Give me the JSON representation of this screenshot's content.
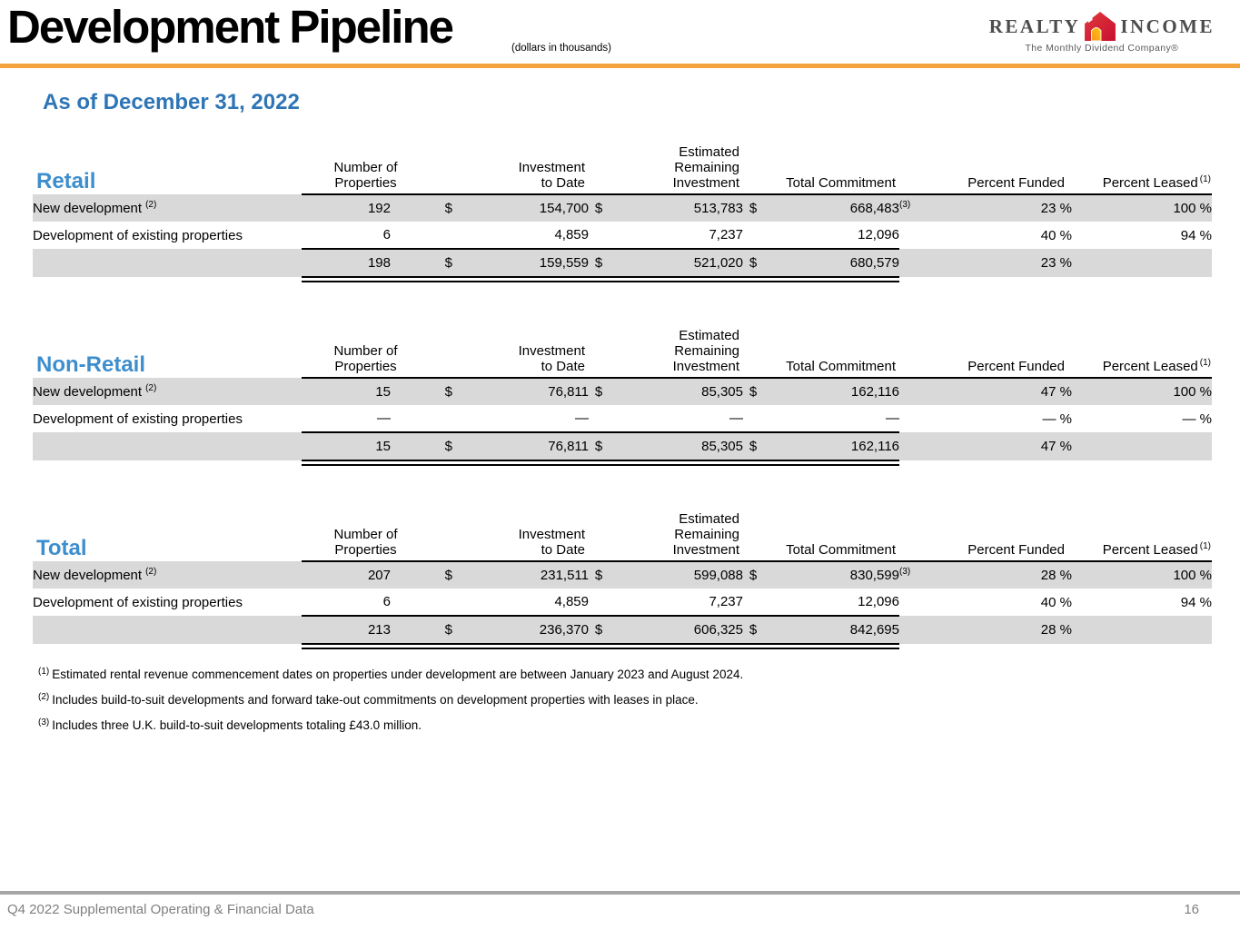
{
  "header": {
    "title": "Development Pipeline",
    "subtitle": "(dollars in thousands)",
    "logo": {
      "word_left": "REALTY",
      "word_right": "INCOME",
      "tagline": "The Monthly Dividend Company®"
    },
    "accent_color": "#F5A33C"
  },
  "as_of": "As of December 31, 2022",
  "columns": {
    "properties": "Number of\nProperties",
    "investment": "Investment\nto Date",
    "remaining": "Estimated\nRemaining\nInvestment",
    "commitment": "Total Commitment",
    "funded": "Percent Funded",
    "leased": "Percent Leased",
    "leased_note": "(1)"
  },
  "sections": [
    {
      "key": "retail",
      "title": "Retail",
      "rows": [
        {
          "label": "New development",
          "label_note": "(2)",
          "shaded": true,
          "props": "192",
          "d1": "$",
          "inv": "154,700",
          "d2": "$",
          "rem": "513,783",
          "d3": "$",
          "commit": "668,483",
          "commit_note": "(3)",
          "funded": "23 %",
          "leased": "100 %"
        },
        {
          "label": "Development of existing properties",
          "shaded": false,
          "props": "6",
          "inv": "4,859",
          "rem": "7,237",
          "commit": "12,096",
          "funded": "40 %",
          "leased": "94 %"
        },
        {
          "label": "",
          "total": true,
          "shaded": true,
          "props": "198",
          "d1": "$",
          "inv": "159,559",
          "d2": "$",
          "rem": "521,020",
          "d3": "$",
          "commit": "680,579",
          "funded": "23 %",
          "leased": ""
        }
      ]
    },
    {
      "key": "non-retail",
      "title": "Non-Retail",
      "rows": [
        {
          "label": "New development",
          "label_note": "(2)",
          "shaded": true,
          "props": "15",
          "d1": "$",
          "inv": "76,811",
          "d2": "$",
          "rem": "85,305",
          "d3": "$",
          "commit": "162,116",
          "funded": "47 %",
          "leased": "100 %"
        },
        {
          "label": "Development of existing properties",
          "shaded": false,
          "props": "—",
          "inv": "—",
          "rem": "—",
          "commit": "—",
          "funded": "— %",
          "leased": "— %"
        },
        {
          "label": "",
          "total": true,
          "shaded": true,
          "props": "15",
          "d1": "$",
          "inv": "76,811",
          "d2": "$",
          "rem": "85,305",
          "d3": "$",
          "commit": "162,116",
          "funded": "47 %",
          "leased": ""
        }
      ]
    },
    {
      "key": "total",
      "title": "Total",
      "rows": [
        {
          "label": "New development",
          "label_note": "(2)",
          "shaded": true,
          "props": "207",
          "d1": "$",
          "inv": "231,511",
          "d2": "$",
          "rem": "599,088",
          "d3": "$",
          "commit": "830,599",
          "commit_note": "(3)",
          "funded": "28 %",
          "leased": "100 %"
        },
        {
          "label": "Development of existing properties",
          "shaded": false,
          "props": "6",
          "inv": "4,859",
          "rem": "7,237",
          "commit": "12,096",
          "funded": "40 %",
          "leased": "94 %"
        },
        {
          "label": "",
          "total": true,
          "shaded": true,
          "props": "213",
          "d1": "$",
          "inv": "236,370",
          "d2": "$",
          "rem": "606,325",
          "d3": "$",
          "commit": "842,695",
          "funded": "28 %",
          "leased": ""
        }
      ]
    }
  ],
  "footnotes": [
    {
      "num": "(1)",
      "text": "Estimated rental revenue commencement dates on properties under development are between January 2023 and August 2024."
    },
    {
      "num": "(2)",
      "text": "Includes build-to-suit developments and forward take-out commitments on development properties with leases in place."
    },
    {
      "num": "(3)",
      "text": "Includes three U.K. build-to-suit developments totaling £43.0 million."
    }
  ],
  "footer": {
    "left": "Q4 2022 Supplemental Operating & Financial Data",
    "page": "16"
  }
}
